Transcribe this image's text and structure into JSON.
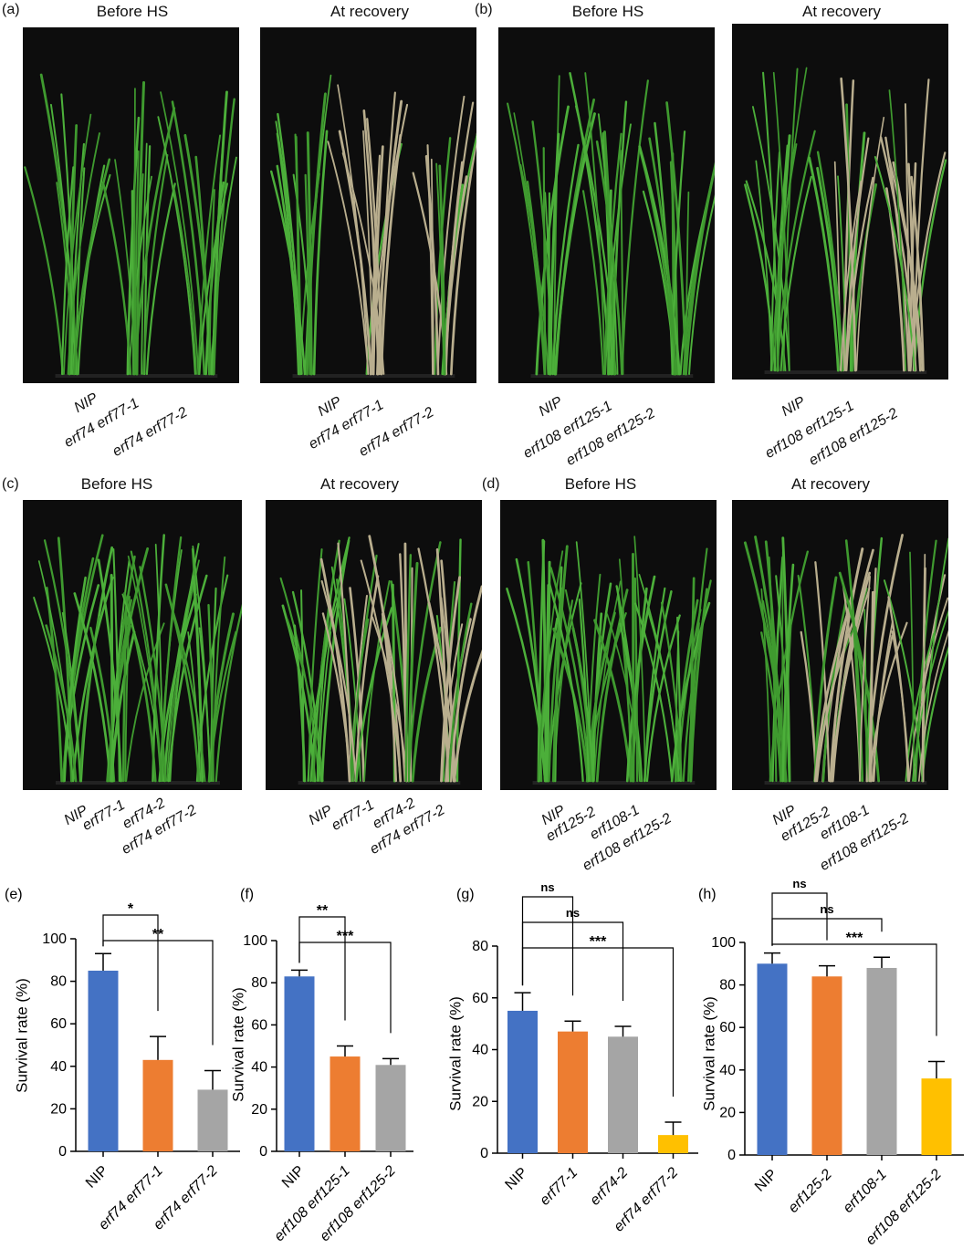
{
  "photo_panels": [
    {
      "label": "(a)",
      "before_title": "Before HS",
      "after_title": "At recovery",
      "before_captions": [
        "NIP",
        "erf74 erf77-1",
        "erf74 erf77-2"
      ],
      "after_captions": [
        "NIP",
        "erf74 erf77-1",
        "erf74 erf77-2"
      ]
    },
    {
      "label": "(b)",
      "before_title": "Before HS",
      "after_title": "At recovery",
      "before_captions": [
        "NIP",
        "erf108 erf125-1",
        "erf108 erf125-2"
      ],
      "after_captions": [
        "NIP",
        "erf108 erf125-1",
        "erf108 erf125-2"
      ]
    },
    {
      "label": "(c)",
      "before_title": "Before HS",
      "after_title": "At recovery",
      "before_captions": [
        "NIP",
        "erf77-1",
        "erf74-2",
        "erf74 erf77-2"
      ],
      "after_captions": [
        "NIP",
        "erf77-1",
        "erf74-2",
        "erf74 erf77-2"
      ]
    },
    {
      "label": "(d)",
      "before_title": "Before HS",
      "after_title": "At recovery",
      "before_captions": [
        "NIP",
        "erf125-2",
        "erf108-1",
        "erf108 erf125-2"
      ],
      "after_captions": [
        "NIP",
        "erf125-2",
        "erf108-1",
        "erf108 erf125-2"
      ]
    }
  ],
  "colors": {
    "blue": "#4472c4",
    "orange": "#ed7d31",
    "gray": "#a5a5a5",
    "yellow": "#ffc000",
    "plant_green": "#3f9a2f",
    "plant_dry": "#b9ae8e",
    "photo_bg": "#0d0d0d"
  },
  "chart_data": [
    {
      "type": "bar",
      "label": "(e)",
      "ylabel": "Survival rate (%)",
      "ylim": [
        0,
        100
      ],
      "yticks": [
        0,
        20,
        40,
        60,
        80,
        100
      ],
      "categories": [
        "NIP",
        "erf74 erf77-1",
        "erf74 erf77-2"
      ],
      "values": [
        85,
        43,
        29
      ],
      "errors": [
        8,
        11,
        9
      ],
      "bar_colors": [
        "blue",
        "orange",
        "gray"
      ],
      "significance": [
        {
          "from": 0,
          "to": 1,
          "text": "*"
        },
        {
          "from": 0,
          "to": 2,
          "text": "**"
        }
      ]
    },
    {
      "type": "bar",
      "label": "(f)",
      "ylabel": "Survival rate (%)",
      "ylim": [
        0,
        100
      ],
      "yticks": [
        0,
        20,
        40,
        60,
        80,
        100
      ],
      "categories": [
        "NIP",
        "erf108 erf125-1",
        "erf108 erf125-2"
      ],
      "values": [
        83,
        45,
        41
      ],
      "errors": [
        3,
        5,
        3
      ],
      "bar_colors": [
        "blue",
        "orange",
        "gray"
      ],
      "significance": [
        {
          "from": 0,
          "to": 1,
          "text": "**"
        },
        {
          "from": 0,
          "to": 2,
          "text": "***"
        }
      ]
    },
    {
      "type": "bar",
      "label": "(g)",
      "ylabel": "Survival rate (%)",
      "ylim": [
        0,
        80
      ],
      "yticks": [
        0,
        20,
        40,
        60,
        80
      ],
      "categories": [
        "NIP",
        "erf77-1",
        "erf74-2",
        "erf74 erf77-2"
      ],
      "values": [
        55,
        47,
        45,
        7
      ],
      "errors": [
        7,
        4,
        4,
        5
      ],
      "bar_colors": [
        "blue",
        "orange",
        "gray",
        "yellow"
      ],
      "significance": [
        {
          "from": 0,
          "to": 1,
          "text": "ns"
        },
        {
          "from": 0,
          "to": 2,
          "text": "ns"
        },
        {
          "from": 0,
          "to": 3,
          "text": "***"
        }
      ]
    },
    {
      "type": "bar",
      "label": "(h)",
      "ylabel": "Survival rate (%)",
      "ylim": [
        0,
        100
      ],
      "yticks": [
        0,
        20,
        40,
        60,
        80,
        100
      ],
      "categories": [
        "NIP",
        "erf125-2",
        "erf108-1",
        "erf108 erf125-2"
      ],
      "values": [
        90,
        84,
        88,
        36
      ],
      "errors": [
        5,
        5,
        5,
        8
      ],
      "bar_colors": [
        "blue",
        "orange",
        "gray",
        "yellow"
      ],
      "significance": [
        {
          "from": 0,
          "to": 1,
          "text": "ns"
        },
        {
          "from": 0,
          "to": 2,
          "text": "ns"
        },
        {
          "from": 0,
          "to": 3,
          "text": "***"
        }
      ]
    }
  ]
}
